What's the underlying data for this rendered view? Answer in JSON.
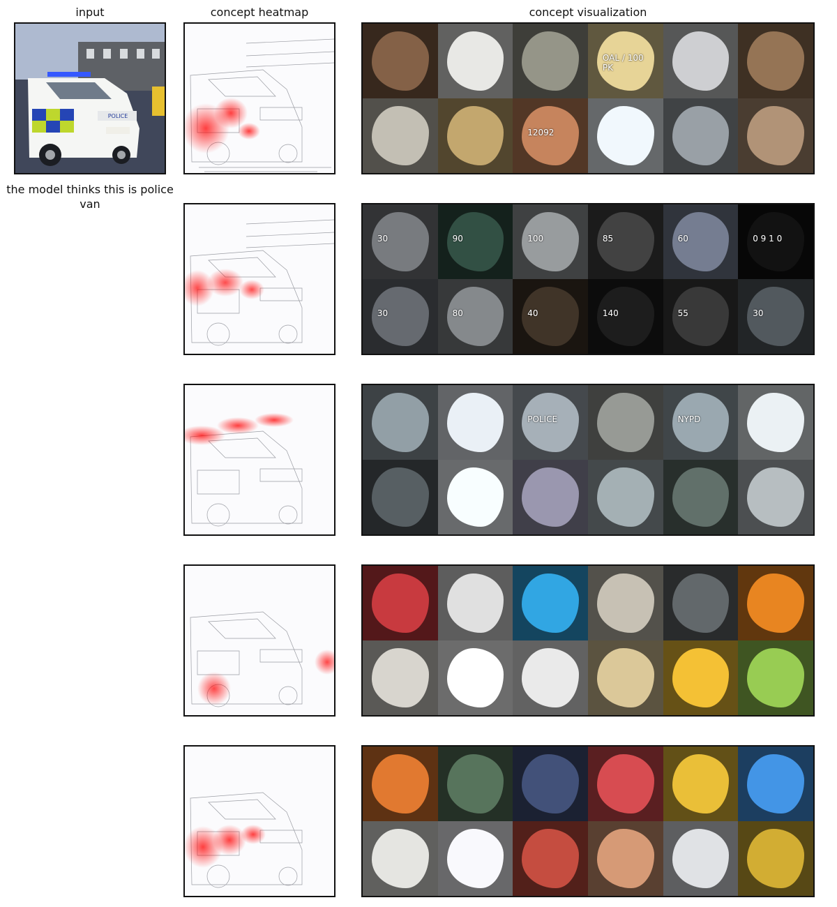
{
  "headers": {
    "input": "input",
    "heatmap": "concept heatmap",
    "visualization": "concept visualization"
  },
  "prediction": {
    "label": "the model thinks this is police van"
  },
  "input_image": {
    "vehicle_text": "POLICE"
  },
  "concepts": [
    {
      "tile_colors": [
        "#7a5a42",
        "#d7d7d4",
        "#8a8a7e",
        "#d6c48c",
        "#bfc0c2",
        "#8a6b4f",
        "#b5b1a7",
        "#b59b66",
        "#b77a56",
        "#dfe6ea",
        "#8e949a",
        "#a4886e"
      ],
      "tile_texts": [
        "",
        "",
        "",
        "OAL / 100 PK",
        "",
        "",
        "",
        "",
        "12092",
        "",
        "",
        ""
      ]
    },
    {
      "tile_colors": [
        "#6f7276",
        "#2e4a3f",
        "#8d9092",
        "#3d3d3d",
        "#6c7486",
        "#111111",
        "#5e6268",
        "#7b7f82",
        "#3b3025",
        "#1b1b1b",
        "#353535",
        "#4c5257"
      ],
      "tile_texts": [
        "30",
        "90",
        "100",
        "85",
        "60",
        "0 9 1 0",
        "30",
        "80",
        "40",
        "140",
        "55",
        "30"
      ]
    },
    {
      "tile_colors": [
        "#87939a",
        "#d9dee4",
        "#9aa3aa",
        "#8c8f8a",
        "#8f9ca3",
        "#dadfe2",
        "#51585c",
        "#e6ebef",
        "#8f8ca2",
        "#98a3a7",
        "#5a6862",
        "#a9b0b3"
      ],
      "tile_texts": [
        "",
        "",
        "POLICE",
        "",
        "NYPD",
        "",
        "",
        "",
        "",
        "",
        "",
        ""
      ]
    },
    {
      "tile_colors": [
        "#b9363a",
        "#cfcfcf",
        "#2d9ad2",
        "#b8b3a7",
        "#5b6063",
        "#d77b1f",
        "#c8c5bf",
        "#efefef",
        "#d9d9d9",
        "#cbb98e",
        "#e2b331",
        "#8dbd4d"
      ],
      "tile_texts": [
        "",
        "",
        "",
        "",
        "",
        "",
        "",
        "",
        "",
        "",
        "",
        ""
      ]
    },
    {
      "tile_colors": [
        "#d0702c",
        "#516b55",
        "#3d4b70",
        "#c7464b",
        "#d9b134",
        "#3e8ad5",
        "#d4d4d0",
        "#e7e7ea",
        "#b6473b",
        "#c68f6d",
        "#cfd1d4",
        "#c2a02f"
      ],
      "tile_texts": [
        "",
        "",
        "",
        "",
        "",
        "",
        "",
        "",
        "",
        "",
        "",
        ""
      ]
    }
  ]
}
